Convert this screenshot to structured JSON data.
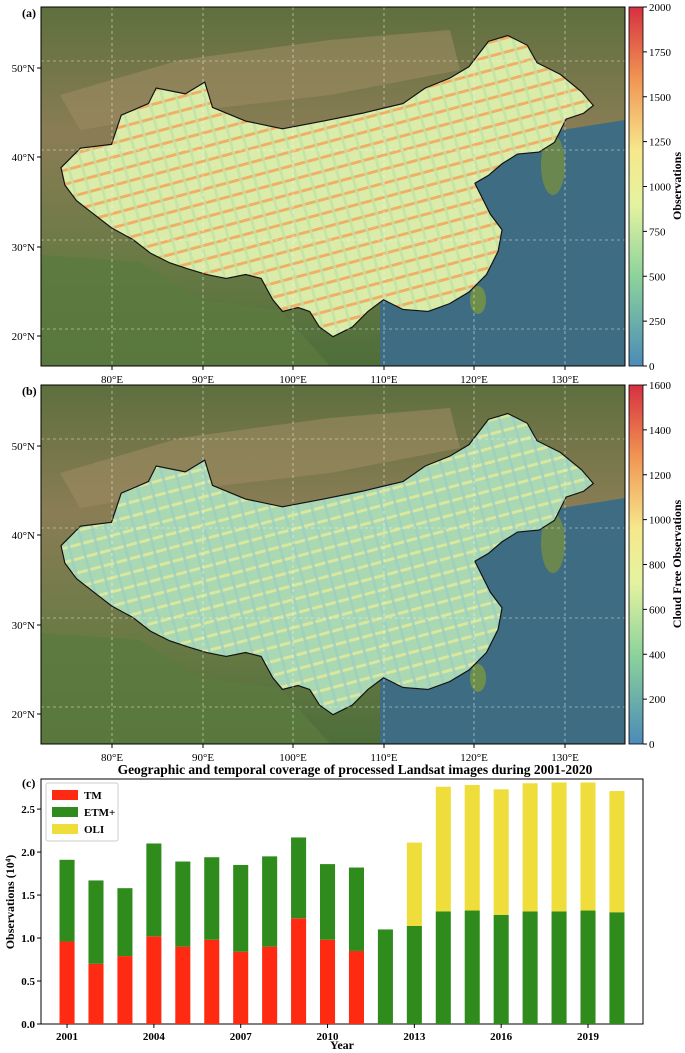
{
  "panel_a": {
    "label": "(a)",
    "lat_ticks": [
      "50°N",
      "40°N",
      "30°N",
      "20°N"
    ],
    "lon_ticks": [
      "80°E",
      "90°E",
      "100°E",
      "110°E",
      "120°E",
      "130°E"
    ],
    "colorbar": {
      "label": "Observations",
      "ticks": [
        "0",
        "250",
        "500",
        "750",
        "1000",
        "1250",
        "1500",
        "1750",
        "2000"
      ]
    }
  },
  "panel_b": {
    "label": "(b)",
    "lat_ticks": [
      "50°N",
      "40°N",
      "30°N",
      "20°N"
    ],
    "lon_ticks": [
      "80°E",
      "90°E",
      "100°E",
      "110°E",
      "120°E",
      "130°E"
    ],
    "colorbar": {
      "label": "Cloud Free Observations",
      "ticks": [
        "0",
        "200",
        "400",
        "600",
        "800",
        "1000",
        "1200",
        "1400",
        "1600"
      ]
    }
  },
  "colors": {
    "TM": "#ff2a12",
    "ETM+": "#2e8b1c",
    "OLI": "#eedd3a",
    "sea": "#3d6c83",
    "land": "#6d7a4a",
    "china_fill": "#cfe6a0"
  },
  "chart_data": {
    "type": "bar",
    "label": "(c)",
    "title": "Geographic and temporal coverage of processed Landsat images during 2001-2020",
    "xlabel": "Year",
    "ylabel": "Observations (10⁴)",
    "stacked": true,
    "ylim": [
      0,
      2.85
    ],
    "yticks": [
      "0.0",
      "0.5",
      "1.0",
      "1.5",
      "2.0",
      "2.5"
    ],
    "xticks": [
      "2001",
      "2004",
      "2007",
      "2010",
      "2013",
      "2016",
      "2019"
    ],
    "legend_position": "top-left",
    "categories": [
      2001,
      2002,
      2003,
      2004,
      2005,
      2006,
      2007,
      2008,
      2009,
      2010,
      2011,
      2012,
      2013,
      2014,
      2015,
      2016,
      2017,
      2018,
      2019,
      2020
    ],
    "series": [
      {
        "name": "TM",
        "values": [
          0.96,
          0.7,
          0.79,
          1.02,
          0.9,
          0.98,
          0.84,
          0.9,
          1.23,
          0.98,
          0.85,
          0,
          0,
          0,
          0,
          0,
          0,
          0,
          0,
          0
        ]
      },
      {
        "name": "ETM+",
        "values": [
          0.95,
          0.97,
          0.79,
          1.08,
          0.99,
          0.96,
          1.01,
          1.05,
          0.94,
          0.88,
          0.97,
          1.1,
          1.14,
          1.31,
          1.32,
          1.27,
          1.31,
          1.31,
          1.32,
          1.3
        ]
      },
      {
        "name": "OLI",
        "values": [
          0,
          0,
          0,
          0,
          0,
          0,
          0,
          0,
          0,
          0,
          0,
          0,
          0.97,
          1.45,
          1.46,
          1.46,
          1.49,
          1.5,
          1.49,
          1.41
        ]
      }
    ]
  }
}
